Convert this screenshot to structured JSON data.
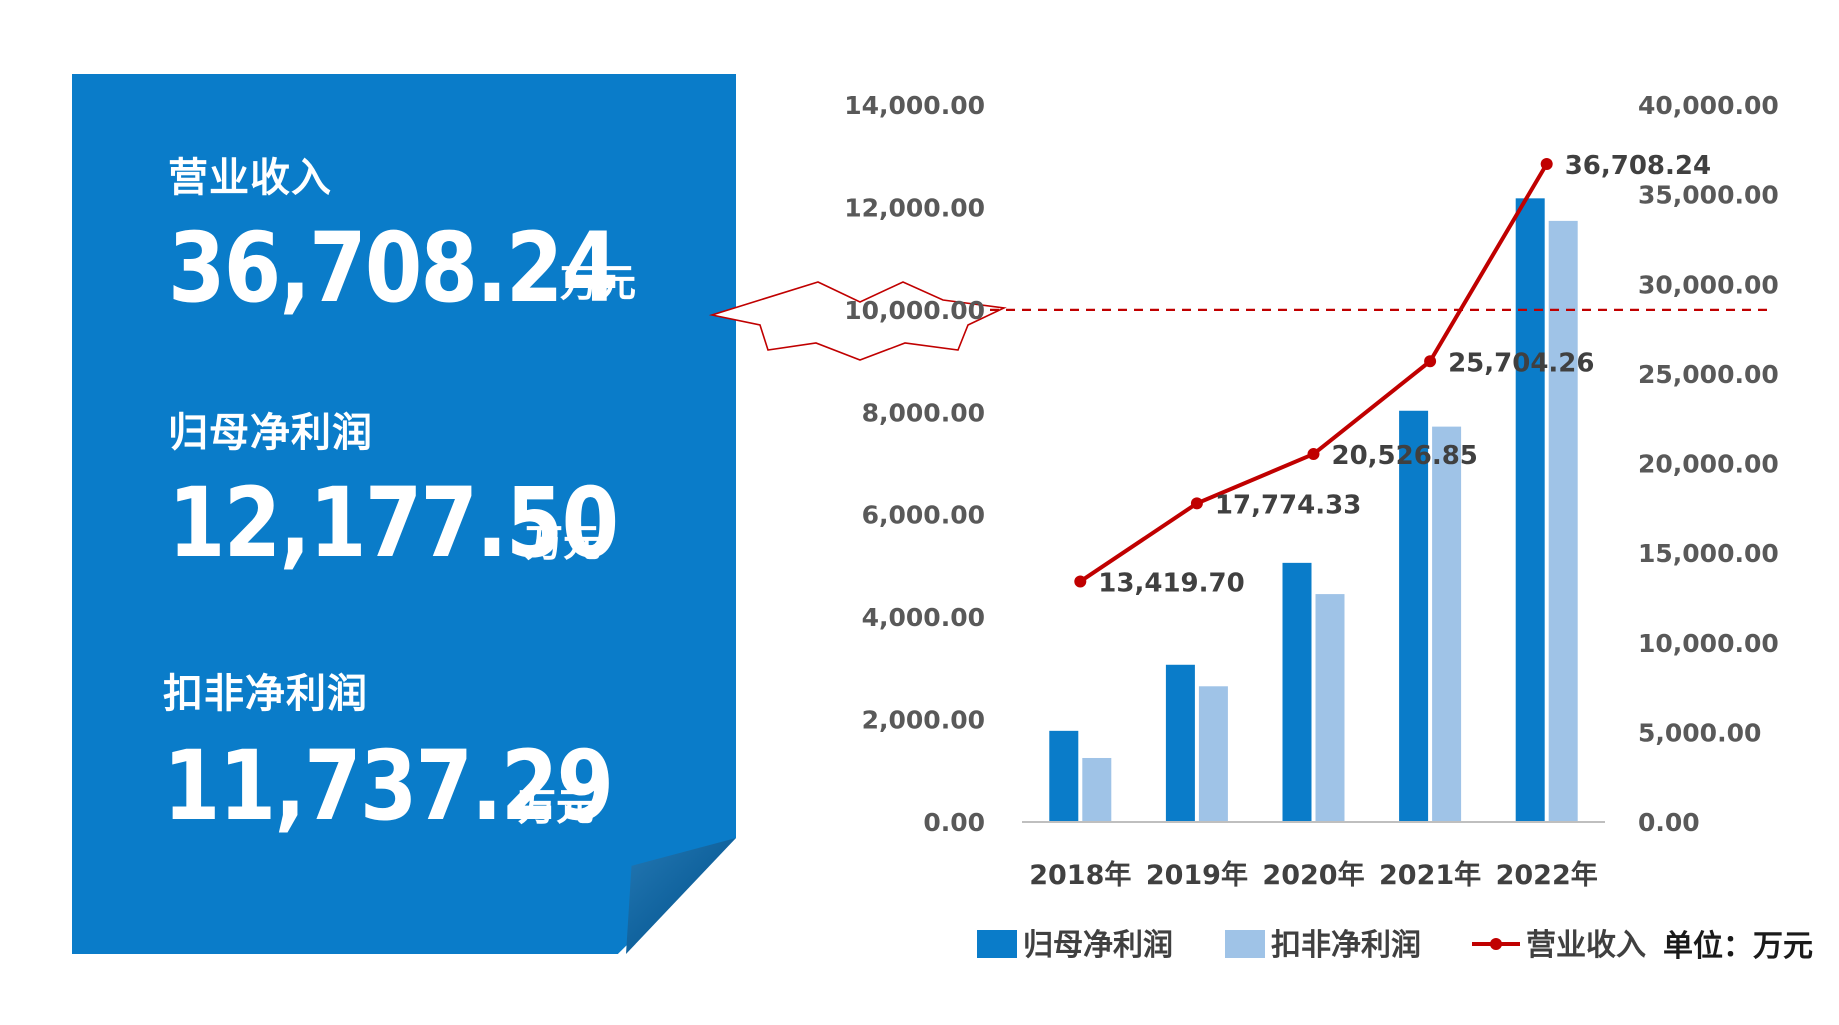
{
  "summary": {
    "revenue": {
      "label": "营业收入",
      "value": "36,708.24",
      "unit": "万元"
    },
    "net_profit": {
      "label": "归母净利润",
      "value": "12,177.50",
      "unit": "万元"
    },
    "adjusted_net_profit": {
      "label": "扣非净利润",
      "value": "11,737.29",
      "unit": "万元"
    }
  },
  "colors": {
    "card": "#0a7cc9",
    "bar_primary": "#0a7cc9",
    "bar_secondary": "#9fc3e7",
    "line": "#c00000",
    "reference_line": "#c00000"
  },
  "chart_data": {
    "type": "bar",
    "categories": [
      "2018年",
      "2019年",
      "2020年",
      "2021年",
      "2022年"
    ],
    "series": [
      {
        "name": "归母净利润",
        "type": "bar",
        "axis": "left",
        "values": [
          1780,
          3070,
          5060,
          8030,
          12177.5
        ]
      },
      {
        "name": "扣非净利润",
        "type": "bar",
        "axis": "left",
        "values": [
          1250,
          2650,
          4450,
          7720,
          11737.29
        ]
      },
      {
        "name": "营业收入",
        "type": "line",
        "axis": "right",
        "values": [
          13419.7,
          17774.33,
          20526.85,
          25704.26,
          36708.24
        ],
        "labels": [
          "13,419.70",
          "17,774.33",
          "20,526.85",
          "25,704.26",
          "36,708.24"
        ]
      }
    ],
    "y_left": {
      "min": 0,
      "max": 14000,
      "ticks": [
        "0.00",
        "2,000.00",
        "4,000.00",
        "6,000.00",
        "8,000.00",
        "10,000.00",
        "12,000.00",
        "14,000.00"
      ]
    },
    "y_right": {
      "min": 0,
      "max": 40000,
      "ticks": [
        "0.00",
        "5,000.00",
        "10,000.00",
        "15,000.00",
        "20,000.00",
        "25,000.00",
        "30,000.00",
        "35,000.00",
        "40,000.00"
      ]
    },
    "reference_line": {
      "axis": "left",
      "value": 10000,
      "style": "dashed",
      "highlight_tick": "10,000.00"
    },
    "unit_note": "单位：万元",
    "legend_position": "bottom",
    "grid": false
  }
}
